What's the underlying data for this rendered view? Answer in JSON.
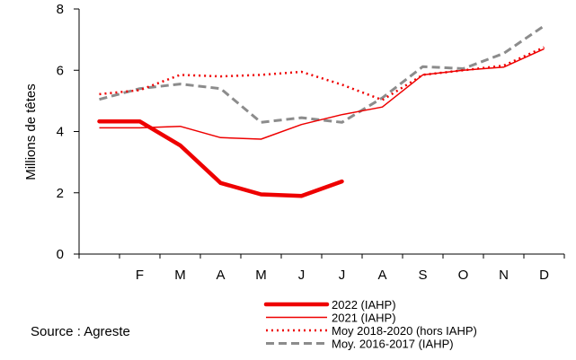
{
  "source_text": "Source : Agreste",
  "chart_data": {
    "type": "line",
    "ylabel": "Millions  de têtes",
    "ylim": [
      0,
      8
    ],
    "yticks": [
      "0",
      "2",
      "4",
      "6",
      "8"
    ],
    "categories": [
      "",
      "F",
      "M",
      "A",
      "M",
      "J",
      "J",
      "A",
      "S",
      "O",
      "N",
      "D"
    ],
    "grid": false,
    "legend_position": "bottom-center",
    "series": [
      {
        "name": "2022 (IAHP)",
        "color": "#ee0000",
        "style": "thick-solid",
        "values": [
          4.33,
          4.33,
          3.55,
          2.32,
          1.95,
          1.9,
          2.37,
          null,
          null,
          null,
          null,
          null
        ]
      },
      {
        "name": "2021 (IAHP)",
        "color": "#ee0000",
        "style": "thin-solid",
        "values": [
          4.12,
          4.12,
          4.17,
          3.8,
          3.75,
          4.23,
          4.55,
          4.8,
          5.85,
          6.0,
          6.1,
          6.7
        ]
      },
      {
        "name": "Moy 2018-2020 (hors IAHP)",
        "color": "#ee0000",
        "style": "dotted",
        "values": [
          5.22,
          5.35,
          5.85,
          5.8,
          5.85,
          5.95,
          5.53,
          5.03,
          5.85,
          6.0,
          6.15,
          6.75
        ]
      },
      {
        "name": "Moy. 2016-2017 (IAHP)",
        "color": "#8c8c8c",
        "style": "dashed",
        "values": [
          5.05,
          5.4,
          5.55,
          5.4,
          4.3,
          4.45,
          4.3,
          5.1,
          6.12,
          6.05,
          6.55,
          7.45
        ]
      }
    ]
  }
}
